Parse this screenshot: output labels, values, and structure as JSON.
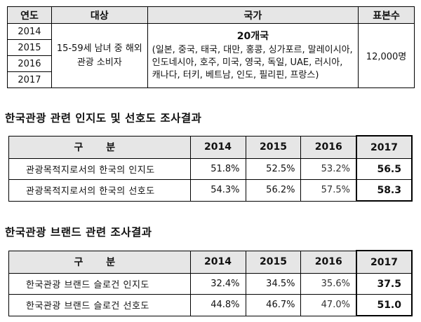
{
  "survey": {
    "headers": {
      "year": "연도",
      "target": "대상",
      "country": "국가",
      "sample": "표본수"
    },
    "years": [
      "2014",
      "2015",
      "2016",
      "2017"
    ],
    "target": "15-59세 남녀 중 해외 관광 소비자",
    "country_count": "20개국",
    "country_list": "(일본, 중국, 태국, 대만, 홍콩, 싱가포르, 말레이시아, 인도네시아, 호주, 미국, 영국, 독일, UAE, 러시아, 캐나다, 터키, 베트남, 인도, 필리핀, 프랑스)",
    "sample": "12,000명"
  },
  "awareness": {
    "title": "한국관광 관련 인지도 및 선호도 조사결과",
    "header_label": "구 분",
    "years": [
      "2014",
      "2015",
      "2016",
      "2017"
    ],
    "rows": [
      {
        "label": "관광목적지로서의 한국의 인지도",
        "values": [
          "51.8%",
          "52.5%",
          "53.2%",
          "56.5"
        ]
      },
      {
        "label": "관광목적지로서의 한국의 선호도",
        "values": [
          "54.3%",
          "56.2%",
          "57.5%",
          "58.3"
        ]
      }
    ]
  },
  "brand": {
    "title": "한국관광 브랜드 관련 조사결과",
    "header_label": "구 분",
    "years": [
      "2014",
      "2015",
      "2016",
      "2017"
    ],
    "rows": [
      {
        "label": "한국관광 브랜드 슬로건 인지도",
        "values": [
          "32.4%",
          "34.5%",
          "35.6%",
          "37.5"
        ]
      },
      {
        "label": "한국관광 브랜드 슬로건 선호도",
        "values": [
          "44.8%",
          "46.7%",
          "47.0%",
          "51.0"
        ]
      }
    ]
  }
}
